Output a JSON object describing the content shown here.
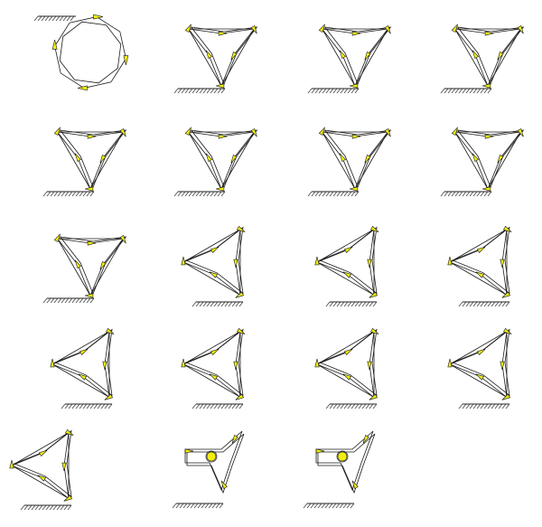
{
  "figure": {
    "description_color": "#f2ee10",
    "line_color": "#1a1a1a",
    "ground_color": "#222222"
  },
  "mechanisms": [
    {
      "id": 1,
      "shape": "ring"
    },
    {
      "id": 2,
      "shape": "tri-down"
    },
    {
      "id": 3,
      "shape": "tri-down"
    },
    {
      "id": 4,
      "shape": "tri-down"
    },
    {
      "id": 5,
      "shape": "tri-down"
    },
    {
      "id": 6,
      "shape": "tri-down"
    },
    {
      "id": 7,
      "shape": "tri-down"
    },
    {
      "id": 8,
      "shape": "tri-down"
    },
    {
      "id": 9,
      "shape": "tri-down"
    },
    {
      "id": 10,
      "shape": "tri-left"
    },
    {
      "id": 11,
      "shape": "tri-left"
    },
    {
      "id": 12,
      "shape": "tri-left"
    },
    {
      "id": 13,
      "shape": "tri-left"
    },
    {
      "id": 14,
      "shape": "tri-left"
    },
    {
      "id": 15,
      "shape": "tri-left"
    },
    {
      "id": 16,
      "shape": "tri-left"
    },
    {
      "id": 17,
      "shape": "tri-left"
    },
    {
      "id": 18,
      "shape": "folded"
    },
    {
      "id": 19,
      "shape": "folded"
    }
  ]
}
